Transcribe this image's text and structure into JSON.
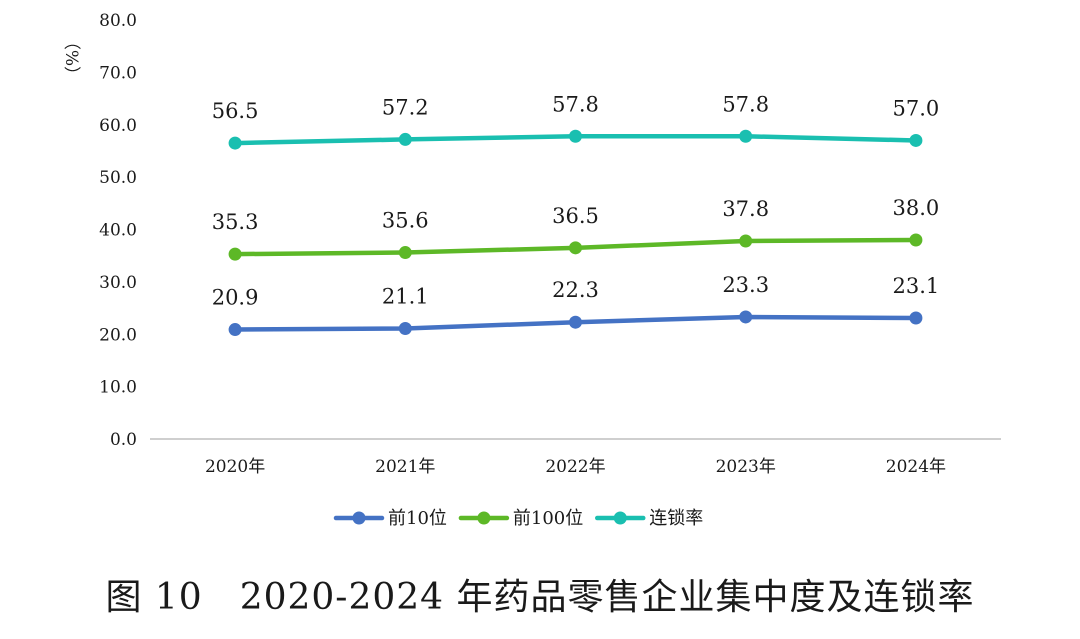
{
  "chart_data": {
    "type": "line",
    "title": "图 10　2020-2024 年药品零售企业集中度及连锁率",
    "ylabel": "（%）",
    "xlabel": "",
    "categories": [
      "2020年",
      "2021年",
      "2022年",
      "2023年",
      "2024年"
    ],
    "ylim": [
      0,
      80
    ],
    "yticks": [
      "0.0",
      "10.0",
      "20.0",
      "30.0",
      "40.0",
      "50.0",
      "60.0",
      "70.0",
      "80.0"
    ],
    "grid": false,
    "legend_position": "bottom",
    "series": [
      {
        "name": "前10位",
        "color": "#4472C4",
        "values": [
          20.9,
          21.1,
          22.3,
          23.3,
          23.1
        ],
        "labels": [
          "20.9",
          "21.1",
          "22.3",
          "23.3",
          "23.1"
        ]
      },
      {
        "name": "前100位",
        "color": "#5DB827",
        "values": [
          35.3,
          35.6,
          36.5,
          37.8,
          38.0
        ],
        "labels": [
          "35.3",
          "35.6",
          "36.5",
          "37.8",
          "38.0"
        ]
      },
      {
        "name": "连锁率",
        "color": "#1ABFB0",
        "values": [
          56.5,
          57.2,
          57.8,
          57.8,
          57.0
        ],
        "labels": [
          "56.5",
          "57.2",
          "57.8",
          "57.8",
          "57.0"
        ]
      }
    ]
  }
}
